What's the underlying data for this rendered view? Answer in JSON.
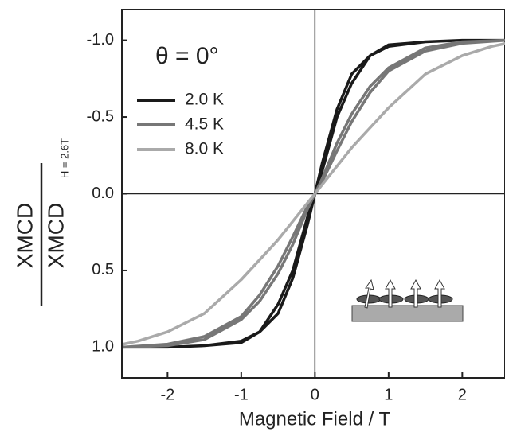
{
  "chart_data": {
    "type": "line",
    "annotation": "θ = 0°",
    "x_label": "Magnetic Field / T",
    "y_label": {
      "numerator": "XMCD",
      "denominator": "XMCD",
      "subscript": "H = 2.6T"
    },
    "xlim": [
      -2.62,
      2.58
    ],
    "xticks": [
      -2,
      -1,
      0,
      1,
      2
    ],
    "ylim": [
      -1.2,
      1.2
    ],
    "y_inverted": true,
    "yticks": [
      {
        "value": -1,
        "label": "-1.0"
      },
      {
        "value": -0.5,
        "label": "-0.5"
      },
      {
        "value": 0,
        "label": "0.0"
      },
      {
        "value": 0.5,
        "label": "0.5"
      },
      {
        "value": 1,
        "label": "1.0"
      }
    ],
    "legend": "upper left",
    "series": [
      {
        "name": "2.0 K",
        "color": "#1a1a1a",
        "x": [
          -2.6,
          -2,
          -1.5,
          -1,
          -0.75,
          -0.5,
          -0.3,
          -0.1,
          0,
          0.1,
          0.3,
          0.5,
          0.75,
          1,
          1.5,
          2,
          2.6,
          2,
          1.5,
          1,
          0.75,
          0.5,
          0.3,
          0.1,
          0,
          -0.1,
          -0.3,
          -0.5,
          -0.75,
          -1,
          -1.5,
          -2,
          -2.6
        ],
        "values": [
          1.0,
          1.0,
          0.99,
          0.96,
          0.9,
          0.78,
          0.55,
          0.2,
          0.0,
          -0.15,
          -0.5,
          -0.72,
          -0.9,
          -0.97,
          -0.99,
          -1.0,
          -1.0,
          -1.0,
          -0.99,
          -0.96,
          -0.9,
          -0.78,
          -0.55,
          -0.2,
          0.0,
          0.15,
          0.5,
          0.72,
          0.9,
          0.97,
          0.99,
          1.0,
          1.0
        ]
      },
      {
        "name": "4.5 K",
        "color": "#777777",
        "x": [
          -2.6,
          -2,
          -1.5,
          -1,
          -0.75,
          -0.5,
          -0.3,
          -0.1,
          0,
          0.1,
          0.3,
          0.5,
          0.75,
          1,
          1.5,
          2,
          2.6,
          2,
          1.5,
          1,
          0.75,
          0.5,
          0.3,
          0.1,
          0,
          -0.1,
          -0.3,
          -0.5,
          -0.75,
          -1,
          -1.5,
          -2,
          -2.6
        ],
        "values": [
          1.0,
          0.99,
          0.95,
          0.82,
          0.7,
          0.52,
          0.33,
          0.1,
          0.0,
          -0.08,
          -0.28,
          -0.47,
          -0.66,
          -0.8,
          -0.93,
          -0.98,
          -1.0,
          -0.99,
          -0.95,
          -0.82,
          -0.7,
          -0.52,
          -0.33,
          -0.1,
          0.0,
          0.08,
          0.28,
          0.47,
          0.66,
          0.8,
          0.93,
          0.98,
          1.0
        ]
      },
      {
        "name": "8.0 K",
        "color": "#aaaaaa",
        "x": [
          -2.6,
          -2.4,
          -2,
          -1.5,
          -1,
          -0.75,
          -0.5,
          -0.3,
          -0.1,
          0,
          0.1,
          0.3,
          0.5,
          0.75,
          1,
          1.5,
          2,
          2.4,
          2.6
        ],
        "values": [
          0.98,
          0.96,
          0.9,
          0.78,
          0.56,
          0.43,
          0.3,
          0.18,
          0.06,
          0,
          -0.06,
          -0.18,
          -0.3,
          -0.43,
          -0.56,
          -0.78,
          -0.9,
          -0.96,
          -0.98
        ]
      }
    ]
  }
}
